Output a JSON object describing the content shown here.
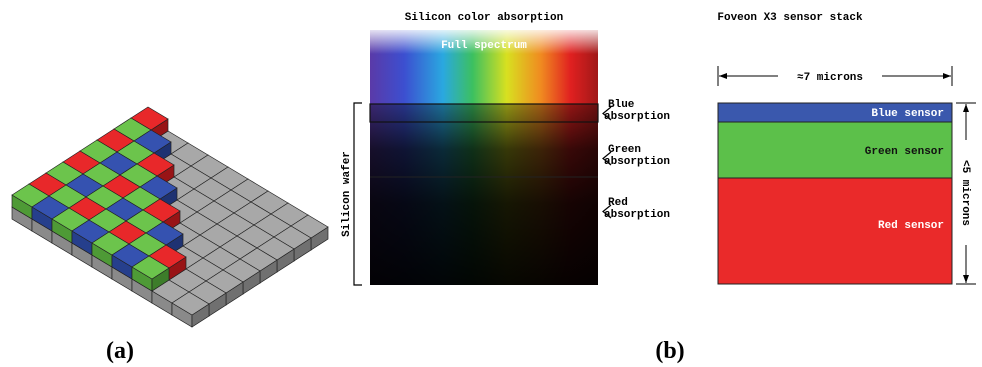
{
  "panel_a": {
    "caption": "(a)"
  },
  "panel_b": {
    "caption": "(b)",
    "absorption": {
      "title": "Silicon color absorption",
      "spectrum_label": "Full spectrum",
      "wafer_label": "Silicon wafer",
      "bands": [
        {
          "lines": [
            "Blue",
            "absorption"
          ]
        },
        {
          "lines": [
            "Green",
            "absorption"
          ]
        },
        {
          "lines": [
            "Red",
            "absorption"
          ]
        }
      ]
    },
    "stack": {
      "title": "Foveon X3 sensor stack",
      "width_label": "≈7 microns",
      "height_label": "<5 microns",
      "layers": [
        {
          "label": "Blue sensor"
        },
        {
          "label": "Green sensor"
        },
        {
          "label": "Red sensor"
        }
      ]
    }
  }
}
